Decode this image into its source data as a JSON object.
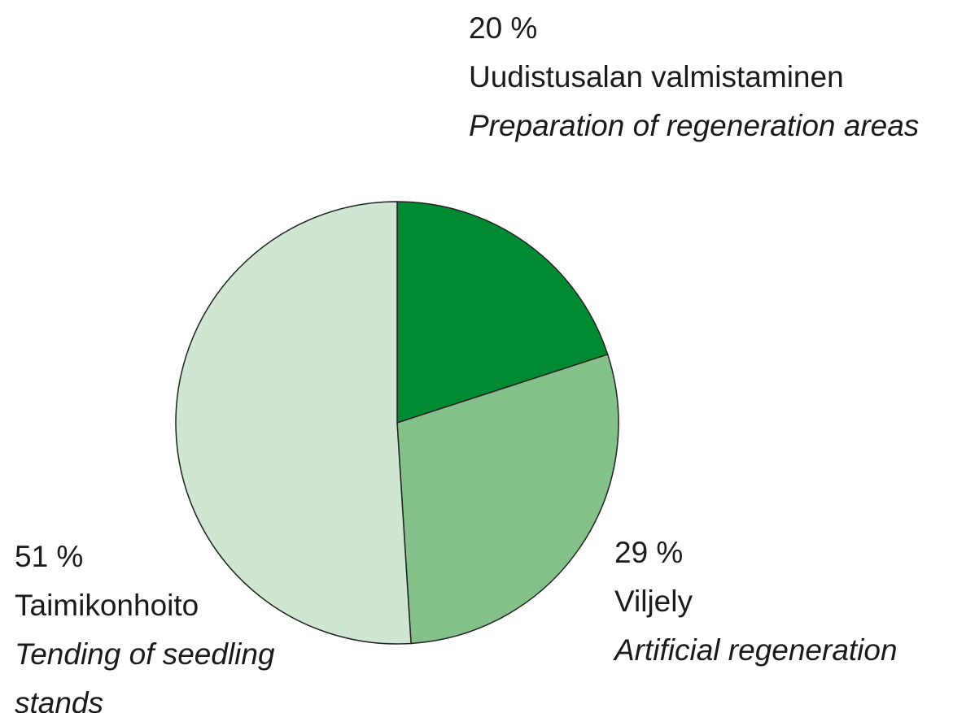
{
  "chart_data": {
    "type": "pie",
    "categories": [
      "Uudistusalan valmistaminen",
      "Viljely",
      "Taimikonhoito"
    ],
    "subcategories": [
      "Preparation of regeneration areas",
      "Artificial regeneration",
      "Tending of seedling stands"
    ],
    "values": [
      20,
      29,
      51
    ],
    "value_labels": [
      "20 %",
      "29 %",
      "51 %"
    ],
    "colors": [
      "#008a32",
      "#84c08a",
      "#cfe7d2"
    ]
  }
}
